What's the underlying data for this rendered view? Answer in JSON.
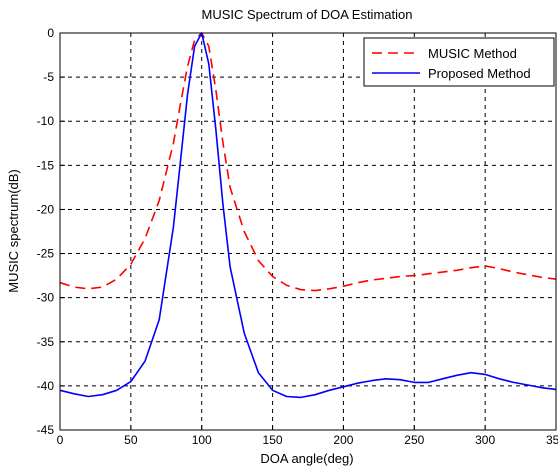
{
  "chart_data": {
    "type": "line",
    "title": "MUSIC Spectrum of DOA Estimation",
    "xlabel": "DOA angle(deg)",
    "ylabel": "MUSIC spectrum(dB)",
    "xlim": [
      0,
      350
    ],
    "ylim": [
      -45,
      0
    ],
    "xticks": [
      0,
      50,
      100,
      150,
      200,
      250,
      300,
      350
    ],
    "yticks": [
      0,
      -5,
      -10,
      -15,
      -20,
      -25,
      -30,
      -35,
      -40,
      -45
    ],
    "grid": true,
    "legend_position": "top-right",
    "series": [
      {
        "name": "MUSIC Method",
        "color": "#ff0000",
        "style": "dashed",
        "x": [
          0,
          10,
          20,
          30,
          40,
          50,
          60,
          70,
          80,
          85,
          90,
          95,
          100,
          105,
          110,
          115,
          120,
          130,
          140,
          150,
          160,
          170,
          180,
          190,
          200,
          210,
          220,
          230,
          240,
          250,
          260,
          270,
          280,
          290,
          300,
          310,
          320,
          330,
          340,
          350
        ],
        "y": [
          -28.3,
          -28.8,
          -29.0,
          -28.8,
          -27.9,
          -26.2,
          -23.3,
          -19.0,
          -12.5,
          -8.0,
          -3.8,
          -0.8,
          0.0,
          -1.5,
          -6.5,
          -12.5,
          -17.5,
          -22.5,
          -25.8,
          -27.6,
          -28.6,
          -29.1,
          -29.2,
          -29.0,
          -28.7,
          -28.3,
          -28.0,
          -27.8,
          -27.6,
          -27.5,
          -27.3,
          -27.1,
          -26.9,
          -26.6,
          -26.4,
          -26.7,
          -27.1,
          -27.4,
          -27.7,
          -27.9
        ]
      },
      {
        "name": "Proposed Method",
        "color": "#0000ff",
        "style": "solid",
        "x": [
          0,
          10,
          20,
          30,
          40,
          50,
          60,
          70,
          80,
          85,
          90,
          95,
          100,
          105,
          110,
          115,
          120,
          130,
          140,
          150,
          160,
          170,
          180,
          190,
          200,
          210,
          220,
          230,
          240,
          250,
          260,
          270,
          280,
          290,
          300,
          310,
          320,
          330,
          340,
          350
        ],
        "y": [
          -40.5,
          -40.9,
          -41.2,
          -41.0,
          -40.5,
          -39.5,
          -37.2,
          -32.5,
          -22.0,
          -14.5,
          -7.0,
          -1.5,
          0.0,
          -3.5,
          -11.0,
          -19.5,
          -26.5,
          -34.0,
          -38.5,
          -40.5,
          -41.2,
          -41.3,
          -41.0,
          -40.5,
          -40.1,
          -39.7,
          -39.4,
          -39.2,
          -39.3,
          -39.6,
          -39.6,
          -39.2,
          -38.8,
          -38.5,
          -38.7,
          -39.2,
          -39.6,
          -39.9,
          -40.2,
          -40.4
        ]
      }
    ]
  }
}
